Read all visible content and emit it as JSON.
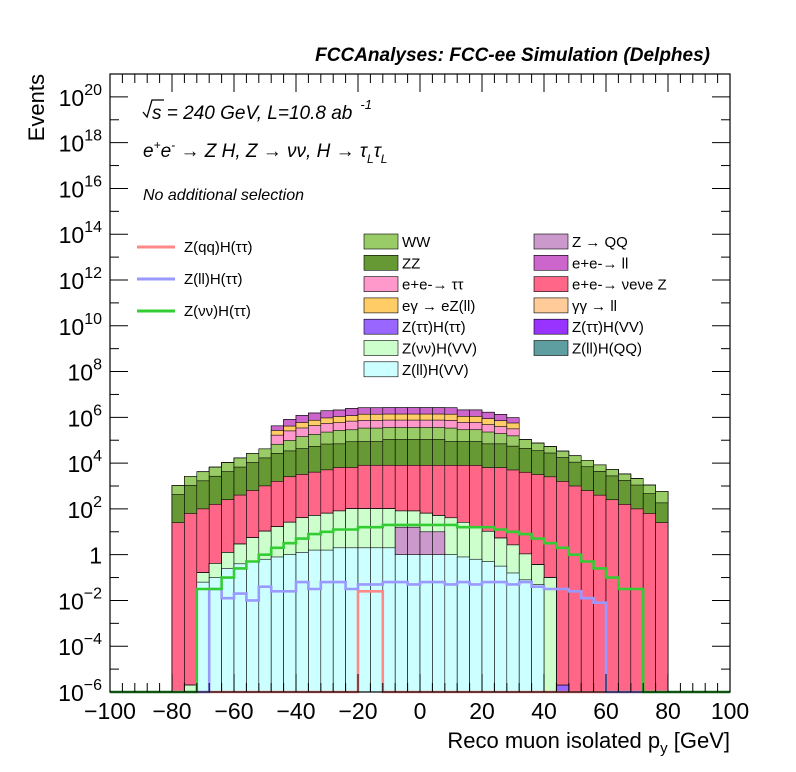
{
  "header": "FCCAnalyses: FCC-ee Simulation (Delphes)",
  "annotations": {
    "line1_parts": [
      "√",
      "s",
      " = 240 GeV, L=10.8 ab",
      "-1"
    ],
    "line2_parts": [
      "e",
      "+",
      "e",
      "-",
      " → Z H, Z → νν, H → τ",
      "L",
      "τ",
      "L"
    ],
    "line3": "No additional selection"
  },
  "chart_data": {
    "type": "histogram-stacked",
    "xlabel": "Reco muon isolated p",
    "xlabel_sub": "y",
    "xlabel_unit": " [GeV]",
    "ylabel": "Events",
    "xlim": [
      -100,
      100
    ],
    "ylim": [
      1e-06,
      1e+21
    ],
    "yscale": "log",
    "x_ticks": [
      "−100",
      "−80",
      "−60",
      "−40",
      "−20",
      "0",
      "20",
      "40",
      "60",
      "80",
      "100"
    ],
    "y_ticks": [
      {
        "base": "10",
        "exp": "−6"
      },
      {
        "base": "10",
        "exp": "−4"
      },
      {
        "base": "10",
        "exp": "−2"
      },
      {
        "base": "1",
        "exp": ""
      },
      {
        "base": "10",
        "exp": "2"
      },
      {
        "base": "10",
        "exp": "4"
      },
      {
        "base": "10",
        "exp": "6"
      },
      {
        "base": "10",
        "exp": "8"
      },
      {
        "base": "10",
        "exp": "10"
      },
      {
        "base": "10",
        "exp": "12"
      },
      {
        "base": "10",
        "exp": "14"
      },
      {
        "base": "10",
        "exp": "16"
      },
      {
        "base": "10",
        "exp": "18"
      },
      {
        "base": "10",
        "exp": "20"
      }
    ],
    "bin_width": 4,
    "x_start": -100,
    "stack_order_bottom_to_top": [
      "Z(ll)H(VV)",
      "Z(νν)H(VV)",
      "Z(ττ)H(VV)",
      "Z(ττ)H(ττ)",
      "Z(ll)H(QQ)",
      "e+e- → νeνe Z",
      "ZZ",
      "WW",
      "e+e- → ττ",
      "eγ → eZ(ll)",
      "e+e- → ll",
      "Z → QQ"
    ],
    "backgrounds": [
      {
        "name": "Z(ll)H(VV)",
        "color": "#ccffff",
        "log10_values": [
          -7,
          -7,
          -7,
          -7,
          -7,
          -7,
          -6,
          -1.2,
          -1.0,
          -0.6,
          -0.4,
          -0.3,
          -0.2,
          -0.1,
          0.0,
          0.1,
          0.2,
          0.2,
          0.3,
          0.3,
          0.3,
          0.3,
          0.3,
          0.3,
          0.2,
          0.2,
          0.1,
          0.0,
          -0.1,
          -0.2,
          -0.3,
          -0.5,
          -0.8,
          -1.1,
          -1.3,
          -6,
          -7,
          -7,
          -7,
          -7,
          -7,
          -7,
          -7,
          -7,
          -7,
          -7,
          -7,
          -7,
          -7,
          -7
        ]
      },
      {
        "name": "Z(νν)H(VV)",
        "color": "#ccffcc",
        "log10_values": [
          -7,
          -7,
          -7,
          -7,
          -7,
          -7,
          -6,
          -1.0,
          -0.5,
          0.0,
          0.4,
          0.7,
          1.0,
          1.2,
          1.4,
          1.6,
          1.7,
          1.8,
          1.9,
          2.0,
          2.0,
          2.0,
          2.0,
          1.9,
          1.9,
          1.8,
          1.7,
          1.6,
          1.4,
          1.2,
          1.0,
          0.7,
          0.4,
          0.0,
          -0.5,
          -1.0,
          -6,
          -7,
          -7,
          -7,
          -7,
          -7,
          -7,
          -7,
          -7,
          -7,
          -7,
          -7,
          -7,
          -7
        ]
      },
      {
        "name": "Z(ττ)H(VV)",
        "color": "#9933ff",
        "log10_values": [
          -7,
          -7,
          -7,
          -7,
          -7,
          -7,
          -7,
          -7,
          -7,
          -7,
          -7,
          -7,
          -7,
          -3.2,
          -3.0,
          -2.8,
          -2.6,
          -2.5,
          -2.3,
          -2.1,
          -2.0,
          -1.9,
          -1.8,
          -1.7,
          -1.7,
          -1.7,
          -1.7,
          -1.8,
          -1.9,
          -2.0,
          -2.1,
          -2.3,
          -2.5,
          -2.7,
          -2.9,
          -3.2,
          -7,
          -7,
          -7,
          -7,
          -7,
          -7,
          -7,
          -7,
          -7,
          -7,
          -7,
          -7,
          -7,
          -7
        ]
      },
      {
        "name": "Z(ττ)H(ττ)",
        "color": "#9966ff",
        "log10_values": [
          -7,
          -7,
          -7,
          -7,
          -7,
          -7,
          -7,
          -7,
          -7,
          -7,
          -7,
          -7,
          -7,
          -6,
          -6,
          -6,
          -6,
          -2.5,
          -2.6,
          -2.4,
          -2.4,
          -2.3,
          -2.2,
          -2.1,
          -2.0,
          -2.0,
          -2.1,
          -2.2,
          -2.3,
          -2.4,
          -2.4,
          -2.6,
          -2.5,
          -6,
          -6,
          -6,
          -6,
          -7,
          -7,
          -7,
          -7,
          -7,
          -7,
          -7,
          -7,
          -7,
          -7,
          -7,
          -7,
          -7
        ]
      },
      {
        "name": "Z(ll)H(QQ)",
        "color": "#5f9ea0",
        "log10_values": [
          -7,
          -7,
          -7,
          -7,
          -7,
          -7,
          -7,
          -7,
          -7,
          -7,
          -7,
          -7,
          -7,
          -7,
          -7,
          -5.3,
          -7,
          -5.2,
          -7,
          -5.0,
          -7,
          -5.1,
          -7,
          -4.9,
          -7,
          -5.0,
          -7,
          -4.9,
          -7,
          -5.2,
          -7,
          -5.1,
          -7,
          -7,
          -7,
          -7,
          -7,
          -7,
          -7,
          -7,
          -7,
          -7,
          -7,
          -7,
          -7,
          -7,
          -7,
          -7,
          -7,
          -7
        ]
      },
      {
        "name": "e+e- → νeνe Z",
        "color": "#ff6688",
        "log10_values": [
          -7,
          -7,
          -7,
          -7,
          -7,
          1.4,
          1.8,
          2.0,
          2.2,
          2.4,
          2.6,
          2.8,
          3.0,
          3.2,
          3.4,
          3.5,
          3.6,
          3.7,
          3.8,
          3.8,
          3.9,
          3.9,
          3.9,
          3.9,
          3.9,
          3.9,
          3.9,
          3.9,
          3.9,
          3.9,
          3.8,
          3.8,
          3.7,
          3.6,
          3.5,
          3.4,
          3.2,
          3.0,
          2.8,
          2.6,
          2.4,
          2.2,
          2.0,
          1.8,
          1.4,
          -7,
          -7,
          -7,
          -7,
          -7
        ]
      },
      {
        "name": "ZZ",
        "color": "#669933",
        "log10_values": [
          -7,
          -7,
          -7,
          -7,
          -7,
          2.6,
          3.0,
          3.2,
          3.4,
          3.6,
          3.8,
          4.0,
          4.2,
          4.4,
          4.5,
          4.6,
          4.7,
          4.8,
          4.8,
          4.9,
          4.9,
          4.9,
          5.0,
          5.0,
          5.0,
          5.0,
          5.0,
          4.9,
          4.9,
          4.9,
          4.8,
          4.8,
          4.7,
          4.6,
          4.5,
          4.4,
          4.2,
          4.0,
          3.8,
          3.6,
          3.4,
          3.2,
          3.0,
          2.6,
          2.2,
          -7,
          -7,
          -7,
          -7,
          -7
        ]
      },
      {
        "name": "WW",
        "color": "#99cc66",
        "log10_values": [
          -7,
          -7,
          -7,
          -7,
          -7,
          2.8,
          3.2,
          3.4,
          3.6,
          3.8,
          4.0,
          4.2,
          4.4,
          4.6,
          4.8,
          5.0,
          5.1,
          5.2,
          5.3,
          5.3,
          5.4,
          5.4,
          5.4,
          5.4,
          5.4,
          5.4,
          5.4,
          5.4,
          5.3,
          5.3,
          5.2,
          5.1,
          5.0,
          4.8,
          4.6,
          4.4,
          4.2,
          4.0,
          3.8,
          3.6,
          3.4,
          3.2,
          3.0,
          2.8,
          2.6,
          -7,
          -7,
          -7,
          -7,
          -7
        ]
      },
      {
        "name": "e+e- → ττ",
        "color": "#ff99cc",
        "log10_values": [
          -7,
          -7,
          -7,
          -7,
          -7,
          -7,
          -7,
          -7,
          -7,
          -7,
          -7,
          -7,
          -7,
          5.0,
          5.2,
          5.3,
          5.4,
          5.5,
          5.5,
          5.6,
          5.6,
          5.6,
          5.6,
          5.6,
          5.6,
          5.6,
          5.6,
          5.6,
          5.5,
          5.5,
          5.4,
          5.3,
          5.2,
          -7,
          -7,
          -7,
          -7,
          -7,
          -7,
          -7,
          -7,
          -7,
          -7,
          -7,
          -7,
          -7,
          -7,
          -7,
          -7,
          -7
        ]
      },
      {
        "name": "eγ → eZ(ll)",
        "color": "#ffcc66",
        "log10_values": [
          -7,
          -7,
          -7,
          -7,
          -7,
          -7,
          -7,
          -7,
          -7,
          -7,
          -7,
          -7,
          -7,
          5.0,
          5.2,
          5.4,
          5.5,
          5.6,
          5.7,
          5.7,
          5.8,
          5.8,
          5.8,
          5.8,
          5.8,
          5.8,
          5.8,
          5.8,
          5.7,
          5.7,
          5.6,
          5.5,
          5.4,
          -7,
          -7,
          -7,
          -7,
          -7,
          -7,
          -7,
          -7,
          -7,
          -7,
          -7,
          -7,
          -7,
          -7,
          -7,
          -7,
          -7
        ]
      },
      {
        "name": "e+e- → ll",
        "color": "#cc66cc",
        "log10_values": [
          -7,
          -7,
          -7,
          -7,
          -7,
          -7,
          -7,
          -7,
          -7,
          -7,
          -7,
          -7,
          -7,
          5.2,
          5.6,
          5.8,
          5.9,
          6.0,
          6.0,
          6.1,
          6.1,
          6.1,
          6.1,
          6.1,
          6.1,
          6.1,
          6.1,
          6.1,
          6.0,
          6.0,
          5.9,
          5.8,
          5.6,
          -7,
          -7,
          -7,
          -7,
          -7,
          -7,
          -7,
          -7,
          -7,
          -7,
          -7,
          -7,
          -7,
          -7,
          -7,
          -7,
          -7
        ]
      },
      {
        "name": "Z → QQ",
        "color": "#cc99cc",
        "log10_values": [
          -7,
          -7,
          -7,
          -7,
          -7,
          -7,
          -7,
          -7,
          -7,
          -7,
          -7,
          -7,
          -7,
          -7,
          -7,
          -7,
          -7,
          -7,
          -7,
          -7,
          -7,
          -7,
          -7,
          -7,
          -7,
          -7,
          -7,
          -7,
          -7,
          -7,
          -7,
          -7,
          -7,
          -7,
          -7,
          -7,
          -7,
          -7,
          -7,
          -7,
          -7,
          -7,
          -7,
          -7,
          -7,
          -7,
          -7,
          -7,
          -7,
          -7
        ]
      },
      {
        "name": "e+e- → νeνe Z",
        "color": "#ff6688",
        "log10_values": []
      }
    ],
    "zqq_bins": [
      {
        "bin": 23,
        "log10": 1.2
      },
      {
        "bin": 24,
        "log10": 1.2
      },
      {
        "bin": 25,
        "log10": 1.0
      },
      {
        "bin": 26,
        "log10": 1.0
      }
    ],
    "signals": [
      {
        "name": "Z(qq)H(ττ)",
        "color": "#ff8888",
        "log10_values": [
          -7,
          -7,
          -7,
          -7,
          -7,
          -7,
          -7,
          -7,
          -7,
          -7,
          -7,
          -7,
          -7,
          -7,
          -7,
          -7,
          -7,
          -7,
          -7,
          -7,
          -1.6,
          -1.6,
          -7,
          -7,
          -7,
          -7,
          -7,
          -7,
          -7,
          -7,
          -7,
          -7,
          -7,
          -7,
          -7,
          -7,
          -7,
          -7,
          -7,
          -7,
          -7,
          -7,
          -7,
          -7,
          -7,
          -7,
          -7,
          -7,
          -7,
          -7
        ]
      },
      {
        "name": "Z(ll)H(ττ)",
        "color": "#9999ff",
        "log10_values": [
          -7,
          -7,
          -7,
          -7,
          -7,
          -7,
          -7,
          -7,
          -1.5,
          -1.9,
          -1.7,
          -2.0,
          -1.4,
          -1.6,
          -1.6,
          -1.2,
          -1.5,
          -1.2,
          -1.2,
          -1.5,
          -1.3,
          -1.3,
          -1.2,
          -1.2,
          -1.3,
          -1.2,
          -1.2,
          -1.3,
          -1.2,
          -1.3,
          -1.2,
          -1.2,
          -1.3,
          -1.2,
          -1.4,
          -1.5,
          -1.5,
          -1.6,
          -1.9,
          -2.1,
          -7,
          -7,
          -7,
          -7,
          -7,
          -7,
          -7,
          -7,
          -7,
          -7
        ]
      },
      {
        "name": "Z(νν)H(ττ)",
        "color": "#33cc33",
        "log10_values": [
          -7,
          -7,
          -7,
          -7,
          -7,
          -7,
          -7,
          -1.5,
          -1.5,
          -1.0,
          -0.6,
          -0.3,
          0.0,
          0.3,
          0.5,
          0.7,
          0.9,
          1.0,
          1.1,
          1.1,
          1.2,
          1.2,
          1.3,
          1.3,
          1.3,
          1.3,
          1.3,
          1.3,
          1.2,
          1.2,
          1.2,
          1.1,
          1.0,
          0.9,
          0.7,
          0.5,
          0.3,
          0.0,
          -0.3,
          -0.6,
          -1.0,
          -1.5,
          -1.5,
          -7,
          -7,
          -7,
          -7,
          -7,
          -7,
          -7
        ]
      }
    ],
    "legend": {
      "signals": [
        "Z(qq)H(ττ)",
        "Z(ll)H(ττ)",
        "Z(νν)H(ττ)"
      ],
      "col1": [
        {
          "label": "WW",
          "color": "#99cc66"
        },
        {
          "label": "ZZ",
          "color": "#669933"
        },
        {
          "label": "e+e-→ ττ",
          "color": "#ff99cc"
        },
        {
          "label": "eγ → eZ(ll)",
          "color": "#ffcc66"
        },
        {
          "label": "Z(ττ)H(ττ)",
          "color": "#9966ff"
        },
        {
          "label": "Z(νν)H(VV)",
          "color": "#ccffcc"
        },
        {
          "label": "Z(ll)H(VV)",
          "color": "#ccffff"
        }
      ],
      "col2": [
        {
          "label": "Z → QQ",
          "color": "#cc99cc"
        },
        {
          "label": "e+e-→ ll",
          "color": "#cc66cc"
        },
        {
          "label": "e+e-→ νeνe Z",
          "color": "#ff6688"
        },
        {
          "label": "γγ → ll",
          "color": "#ffcc99"
        },
        {
          "label": "Z(ττ)H(VV)",
          "color": "#9933ff"
        },
        {
          "label": "Z(ll)H(QQ)",
          "color": "#5f9ea0"
        }
      ]
    }
  }
}
